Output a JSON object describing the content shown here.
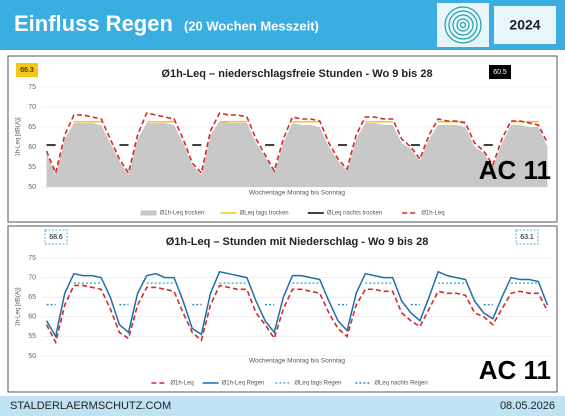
{
  "header": {
    "title": "Einfluss Regen",
    "subtitle": "(20 Wochen Messzeit)",
    "year": "2024"
  },
  "footer": {
    "site": "STALDERLAERMSCHUTZ.COM",
    "date": "08.05.2026"
  },
  "chart_data": [
    {
      "type": "line",
      "title": "Ø1h-Leq – niederschlagsfreie Stunden - Wo 9 bis 28",
      "x_label": "Wochentage Montag bis Sonntag",
      "y_label": "1h-Leq [dB(A)]",
      "ylim": [
        50,
        75
      ],
      "yticks": [
        50,
        55,
        60,
        65,
        70,
        75
      ],
      "legend": "bottom",
      "annotations": [
        "66.3",
        "60.5",
        "AC 11"
      ],
      "series": [
        {
          "name": "Ø1h-Leq trocken",
          "color": "#c8c8c8",
          "style": "area",
          "values": [
            58.5,
            53,
            62,
            66,
            66,
            66,
            65.5,
            61,
            56.5,
            53,
            62,
            66,
            66,
            66,
            65.5,
            61,
            55.5,
            53,
            63,
            66.5,
            66,
            66,
            66,
            61,
            57.5,
            53.5,
            61,
            66,
            65.5,
            65.5,
            65,
            60,
            56.5,
            54,
            62,
            66,
            66,
            65.5,
            65.5,
            61,
            59.5,
            56.5,
            62,
            65.5,
            65.5,
            65.5,
            65,
            60,
            58.5,
            55,
            61,
            65.5,
            65.5,
            65,
            65,
            60
          ]
        },
        {
          "name": "ØLeq tags trocken",
          "color": "#f5c518",
          "style": "line",
          "values": [
            null,
            null,
            null,
            66.3,
            66.3,
            66.3,
            66.3,
            null,
            null,
            null,
            null,
            66.3,
            66.3,
            66.3,
            66.3,
            null,
            null,
            null,
            null,
            66.3,
            66.3,
            66.3,
            66.3,
            null,
            null,
            null,
            null,
            66.3,
            66.3,
            66.3,
            66.3,
            null,
            null,
            null,
            null,
            66.3,
            66.3,
            66.3,
            66.3,
            null,
            null,
            null,
            null,
            66.3,
            66.3,
            66.3,
            66.3,
            null,
            null,
            null,
            null,
            66.3,
            66.3,
            66.3,
            66.3,
            null
          ]
        },
        {
          "name": "ØLeq nachts trocken",
          "color": "#000000",
          "style": "line",
          "values": [
            60.5,
            60.5,
            null,
            null,
            null,
            null,
            null,
            null,
            60.5,
            60.5,
            null,
            null,
            null,
            null,
            null,
            null,
            60.5,
            60.5,
            null,
            null,
            null,
            null,
            null,
            null,
            60.5,
            60.5,
            null,
            null,
            null,
            null,
            null,
            null,
            60.5,
            60.5,
            null,
            null,
            null,
            null,
            null,
            null,
            60.5,
            60.5,
            null,
            null,
            null,
            null,
            null,
            null,
            60.5,
            60.5,
            null,
            null,
            null,
            null,
            null,
            null
          ]
        },
        {
          "name": "Ø1h-Leq",
          "color": "#d42a2a",
          "style": "dashed",
          "values": [
            59,
            53.5,
            63,
            68,
            68,
            67.5,
            67,
            62,
            57,
            53.5,
            63,
            68.5,
            68,
            67.5,
            67,
            62,
            56,
            53.5,
            64,
            68.5,
            68,
            68,
            67.5,
            62,
            58,
            54,
            62,
            67.5,
            67,
            67,
            66.5,
            61,
            57,
            54.5,
            63,
            67.5,
            67.5,
            67,
            67,
            62,
            60,
            57,
            63,
            67,
            66.5,
            66.5,
            66,
            61,
            59,
            55.5,
            62,
            66.5,
            66.5,
            66,
            65.5,
            61
          ]
        }
      ]
    },
    {
      "type": "line",
      "title": "Ø1h-Leq – Stunden mit Niederschlag - Wo 9 bis 28",
      "x_label": "Wochentage Montag bis Sonntag",
      "y_label": "1h-Leq [dB(A)]",
      "ylim": [
        50,
        75
      ],
      "yticks": [
        50,
        55,
        60,
        65,
        70,
        75
      ],
      "legend": "bottom",
      "annotations": [
        "68.6",
        "63.1",
        "AC 11"
      ],
      "series": [
        {
          "name": "Ø1h-Leq",
          "color": "#d42a2a",
          "style": "dashed",
          "values": [
            58,
            53.5,
            63,
            68,
            68,
            67.5,
            67,
            62,
            56,
            54.5,
            63,
            67.5,
            67.5,
            67,
            66.5,
            61,
            56,
            54,
            63,
            68,
            67.5,
            67,
            67,
            61,
            58,
            54.5,
            62,
            67,
            67,
            66.5,
            66,
            61,
            57,
            55,
            63,
            67,
            67,
            66.5,
            66.5,
            61,
            59,
            57.5,
            62,
            66.5,
            66,
            66,
            65.5,
            61,
            60,
            58,
            62,
            66,
            66.5,
            66,
            66,
            61.5
          ]
        },
        {
          "name": "Ø1h-Leq Regen",
          "color": "#1f6fa8",
          "style": "line",
          "values": [
            59,
            55,
            66,
            71,
            70.5,
            70.5,
            70,
            65,
            58,
            56,
            66,
            70.5,
            71,
            70,
            70,
            64,
            57,
            55.5,
            66,
            71.5,
            71,
            70.5,
            70,
            64,
            59,
            56,
            65,
            70.5,
            70.5,
            70,
            69.5,
            64,
            59,
            56.5,
            66,
            71,
            70.5,
            70,
            70,
            64,
            61,
            59,
            65,
            71.5,
            70.5,
            70,
            69.5,
            64,
            61,
            59.5,
            65,
            70,
            69.5,
            69.5,
            69,
            63
          ]
        },
        {
          "name": "ØLeq tags Regen",
          "color": "#4fb3d9",
          "style": "dotted",
          "values": [
            null,
            null,
            null,
            68.6,
            68.6,
            68.6,
            68.6,
            null,
            null,
            null,
            null,
            68.6,
            68.6,
            68.6,
            68.6,
            null,
            null,
            null,
            null,
            68.6,
            68.6,
            68.6,
            68.6,
            null,
            null,
            null,
            null,
            68.6,
            68.6,
            68.6,
            68.6,
            null,
            null,
            null,
            null,
            68.6,
            68.6,
            68.6,
            68.6,
            null,
            null,
            null,
            null,
            68.6,
            68.6,
            68.6,
            68.6,
            null,
            null,
            null,
            null,
            68.6,
            68.6,
            68.6,
            68.6,
            null
          ]
        },
        {
          "name": "ØLeq nachts Regen",
          "color": "#2b8fc4",
          "style": "dotted",
          "values": [
            63.1,
            63.1,
            null,
            null,
            null,
            null,
            null,
            null,
            63.1,
            63.1,
            null,
            null,
            null,
            null,
            null,
            null,
            63.1,
            63.1,
            null,
            null,
            null,
            null,
            null,
            null,
            63.1,
            63.1,
            null,
            null,
            null,
            null,
            null,
            null,
            63.1,
            63.1,
            null,
            null,
            null,
            null,
            null,
            null,
            63.1,
            63.1,
            null,
            null,
            null,
            null,
            null,
            null,
            63.1,
            63.1,
            null,
            null,
            null,
            null,
            null,
            null
          ]
        }
      ]
    }
  ]
}
